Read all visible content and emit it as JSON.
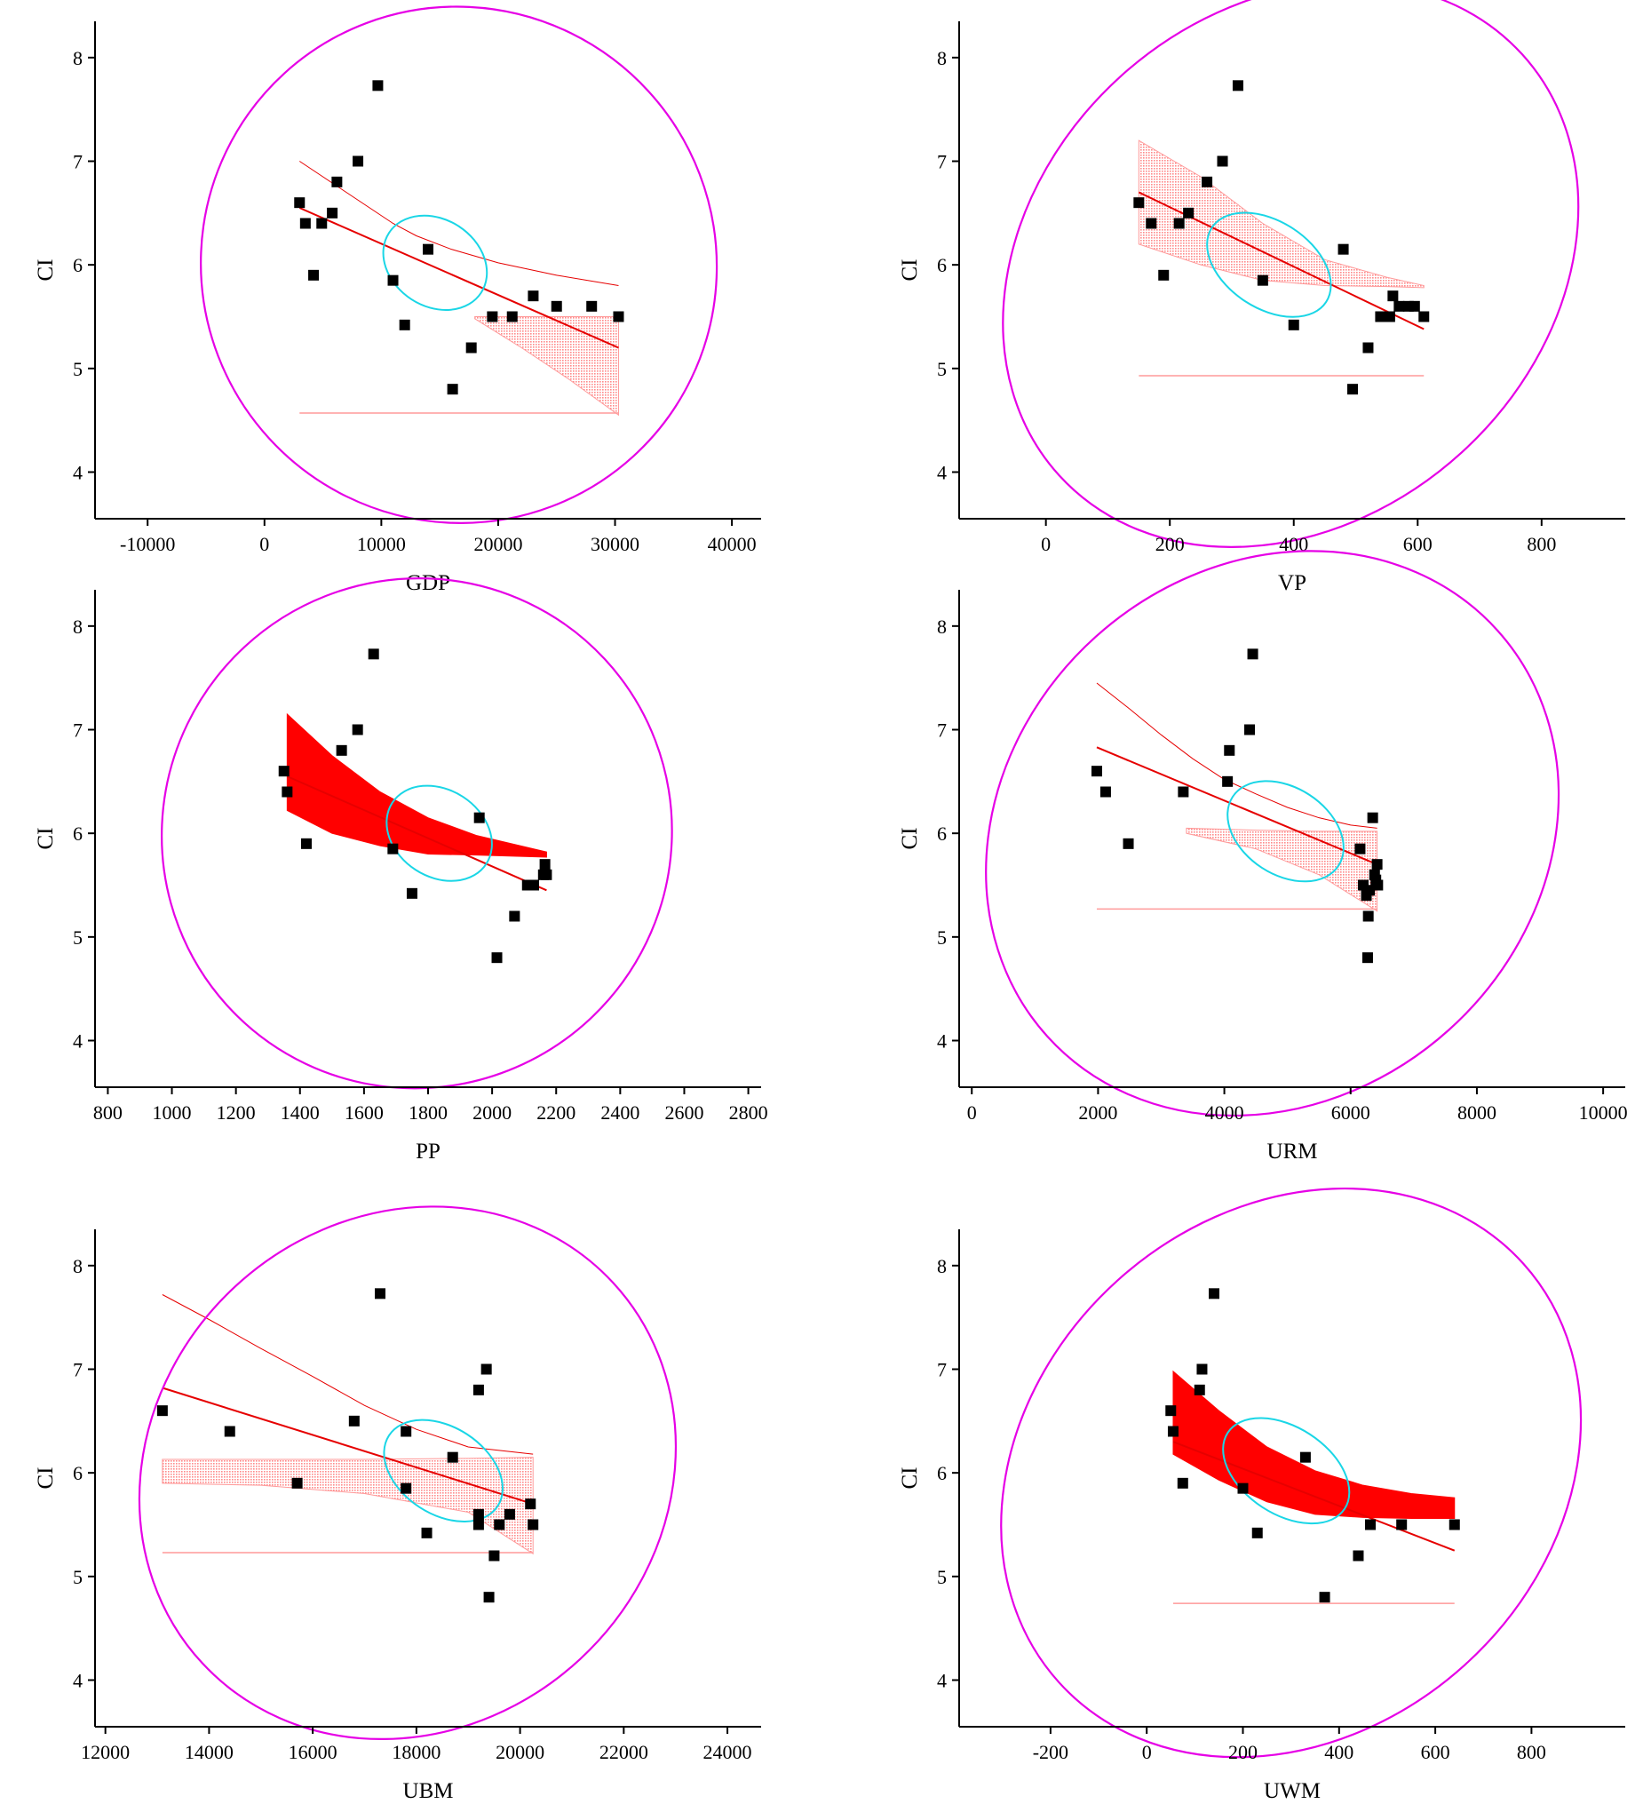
{
  "colors": {
    "points": "#000000",
    "fit_line": "#e60000",
    "band": "#ff0000",
    "band_light": "#ff9a9a",
    "outer_ellipse": "#e600e6",
    "inner_ellipse": "#1ad6e6",
    "axis": "#000000"
  },
  "chart_data": [
    {
      "type": "scatter",
      "xlabel": "GDP",
      "ylabel": "CI",
      "xlim": [
        -14500,
        42500
      ],
      "ylim": [
        3.55,
        8.35
      ],
      "xticks": [
        -10000,
        0,
        10000,
        20000,
        30000,
        40000
      ],
      "yticks": [
        4,
        5,
        6,
        7,
        8
      ],
      "points": [
        [
          3000,
          6.6
        ],
        [
          3500,
          6.4
        ],
        [
          4200,
          5.9
        ],
        [
          4900,
          6.4
        ],
        [
          5800,
          6.5
        ],
        [
          6200,
          6.8
        ],
        [
          8000,
          7.0
        ],
        [
          9700,
          7.73
        ],
        [
          11000,
          5.85
        ],
        [
          12000,
          5.42
        ],
        [
          14000,
          6.15
        ],
        [
          16100,
          4.8
        ],
        [
          17700,
          5.2
        ],
        [
          19500,
          5.5
        ],
        [
          21200,
          5.5
        ],
        [
          23000,
          5.7
        ],
        [
          25000,
          5.6
        ],
        [
          28000,
          5.6
        ],
        [
          30300,
          5.5
        ]
      ],
      "fit_line": [
        [
          3000,
          6.55
        ],
        [
          30300,
          5.2
        ]
      ],
      "band_style": "light",
      "band_upper": [
        [
          18000,
          5.5
        ],
        [
          22000,
          5.5
        ],
        [
          26000,
          5.5
        ],
        [
          30300,
          5.5
        ]
      ],
      "band_lower": [
        [
          18000,
          5.48
        ],
        [
          22000,
          5.2
        ],
        [
          26000,
          4.9
        ],
        [
          30300,
          4.55
        ]
      ],
      "upper_curve": [
        [
          3000,
          7.0
        ],
        [
          5000,
          6.85
        ],
        [
          7000,
          6.7
        ],
        [
          9000,
          6.55
        ],
        [
          11000,
          6.4
        ],
        [
          13000,
          6.28
        ],
        [
          16000,
          6.15
        ],
        [
          20000,
          6.02
        ],
        [
          25000,
          5.9
        ],
        [
          30300,
          5.8
        ]
      ],
      "lower_line": [
        [
          3000,
          4.57
        ],
        [
          30300,
          4.57
        ]
      ],
      "outer_ellipse": {
        "cx": 16630,
        "cy": 6.0,
        "rx": 22000,
        "ry": 2.5,
        "angle": -42.4
      },
      "inner_ellipse": {
        "cx": 14600,
        "cy": 6.02,
        "rx": 4700,
        "ry": 0.42,
        "angle": 33
      }
    },
    {
      "type": "scatter",
      "xlabel": "VP",
      "ylabel": "CI",
      "xlim": [
        -140,
        935
      ],
      "ylim": [
        3.55,
        8.35
      ],
      "xticks": [
        0,
        200,
        400,
        600,
        800
      ],
      "yticks": [
        4,
        5,
        6,
        7,
        8
      ],
      "points": [
        [
          150,
          6.6
        ],
        [
          170,
          6.4
        ],
        [
          190,
          5.9
        ],
        [
          215,
          6.4
        ],
        [
          230,
          6.5
        ],
        [
          260,
          6.8
        ],
        [
          285,
          7.0
        ],
        [
          310,
          7.73
        ],
        [
          350,
          5.85
        ],
        [
          400,
          5.42
        ],
        [
          480,
          6.15
        ],
        [
          495,
          4.8
        ],
        [
          520,
          5.2
        ],
        [
          540,
          5.5
        ],
        [
          555,
          5.5
        ],
        [
          560,
          5.7
        ],
        [
          570,
          5.6
        ],
        [
          585,
          5.6
        ],
        [
          595,
          5.6
        ],
        [
          610,
          5.5
        ]
      ],
      "fit_line": [
        [
          150,
          6.7
        ],
        [
          610,
          5.38
        ]
      ],
      "band_style": "light",
      "band_upper": [
        [
          150,
          7.2
        ],
        [
          250,
          6.85
        ],
        [
          350,
          6.4
        ],
        [
          450,
          6.05
        ],
        [
          550,
          5.88
        ],
        [
          610,
          5.8
        ]
      ],
      "band_lower": [
        [
          150,
          6.2
        ],
        [
          250,
          6.0
        ],
        [
          350,
          5.85
        ],
        [
          450,
          5.8
        ],
        [
          550,
          5.79
        ],
        [
          610,
          5.78
        ]
      ],
      "upper_curve": [],
      "lower_line": [
        [
          150,
          4.93
        ],
        [
          610,
          4.93
        ]
      ],
      "outer_ellipse": {
        "cx": 395,
        "cy": 6.0,
        "rx": 505,
        "ry": 2.45,
        "angle": -42.3
      },
      "inner_ellipse": {
        "cx": 360,
        "cy": 6.0,
        "rx": 110,
        "ry": 0.42,
        "angle": 33
      }
    },
    {
      "type": "scatter",
      "xlabel": "PP",
      "ylabel": "CI",
      "xlim": [
        760,
        2840
      ],
      "ylim": [
        3.55,
        8.35
      ],
      "xticks": [
        800,
        1000,
        1200,
        1400,
        1600,
        1800,
        2000,
        2200,
        2400,
        2600,
        2800
      ],
      "yticks": [
        4,
        5,
        6,
        7,
        8
      ],
      "points": [
        [
          1350,
          6.6
        ],
        [
          1360,
          6.4
        ],
        [
          1420,
          5.9
        ],
        [
          1530,
          6.8
        ],
        [
          1580,
          7.0
        ],
        [
          1630,
          7.73
        ],
        [
          1690,
          5.85
        ],
        [
          1750,
          5.42
        ],
        [
          1960,
          6.15
        ],
        [
          2015,
          4.8
        ],
        [
          2070,
          5.2
        ],
        [
          2110,
          5.5
        ],
        [
          2130,
          5.5
        ],
        [
          2160,
          5.6
        ],
        [
          2165,
          5.7
        ],
        [
          2170,
          5.6
        ]
      ],
      "fit_line": [
        [
          1360,
          6.55
        ],
        [
          2170,
          5.45
        ]
      ],
      "band_style": "solid",
      "band_upper": [
        [
          1360,
          7.15
        ],
        [
          1500,
          6.75
        ],
        [
          1650,
          6.4
        ],
        [
          1800,
          6.15
        ],
        [
          1950,
          5.98
        ],
        [
          2170,
          5.82
        ]
      ],
      "band_lower": [
        [
          1360,
          6.22
        ],
        [
          1500,
          6.0
        ],
        [
          1650,
          5.88
        ],
        [
          1800,
          5.8
        ],
        [
          1950,
          5.79
        ],
        [
          2170,
          5.77
        ]
      ],
      "upper_curve": [],
      "lower_line": [],
      "outer_ellipse": {
        "cx": 1765,
        "cy": 6.0,
        "rx": 800,
        "ry": 2.45,
        "angle": -42.8
      },
      "inner_ellipse": {
        "cx": 1835,
        "cy": 6.0,
        "rx": 175,
        "ry": 0.42,
        "angle": 33
      }
    },
    {
      "type": "scatter",
      "xlabel": "URM",
      "ylabel": "CI",
      "xlim": [
        -200,
        10350
      ],
      "ylim": [
        3.55,
        8.35
      ],
      "xticks": [
        0,
        2000,
        4000,
        6000,
        8000,
        10000
      ],
      "yticks": [
        4,
        5,
        6,
        7,
        8
      ],
      "points": [
        [
          1980,
          6.6
        ],
        [
          2120,
          6.4
        ],
        [
          2480,
          5.9
        ],
        [
          3350,
          6.4
        ],
        [
          4050,
          6.5
        ],
        [
          4080,
          6.8
        ],
        [
          4400,
          7.0
        ],
        [
          4450,
          7.73
        ],
        [
          6150,
          5.85
        ],
        [
          6200,
          5.5
        ],
        [
          6250,
          5.4
        ],
        [
          6280,
          5.2
        ],
        [
          6300,
          5.45
        ],
        [
          6350,
          6.15
        ],
        [
          6380,
          5.6
        ],
        [
          6400,
          5.55
        ],
        [
          6420,
          5.7
        ],
        [
          6430,
          5.5
        ],
        [
          6270,
          4.8
        ]
      ],
      "fit_line": [
        [
          1980,
          6.83
        ],
        [
          6420,
          5.7
        ]
      ],
      "band_style": "light",
      "band_upper": [
        [
          3400,
          6.05
        ],
        [
          4500,
          6.03
        ],
        [
          5500,
          6.02
        ],
        [
          6420,
          6.02
        ]
      ],
      "band_lower": [
        [
          3400,
          6.0
        ],
        [
          4500,
          5.85
        ],
        [
          5500,
          5.6
        ],
        [
          6420,
          5.25
        ]
      ],
      "upper_curve": [
        [
          1980,
          7.45
        ],
        [
          2500,
          7.2
        ],
        [
          3000,
          6.95
        ],
        [
          3500,
          6.72
        ],
        [
          4000,
          6.52
        ],
        [
          4500,
          6.38
        ],
        [
          5000,
          6.25
        ],
        [
          5500,
          6.15
        ],
        [
          6000,
          6.08
        ],
        [
          6420,
          6.05
        ]
      ],
      "lower_line": [
        [
          1980,
          5.27
        ],
        [
          6420,
          5.27
        ]
      ],
      "outer_ellipse": {
        "cx": 4760,
        "cy": 6.0,
        "rx": 4800,
        "ry": 2.55,
        "angle": -42
      },
      "inner_ellipse": {
        "cx": 4970,
        "cy": 6.02,
        "rx": 1000,
        "ry": 0.42,
        "angle": 33
      }
    },
    {
      "type": "scatter",
      "xlabel": "UBM",
      "ylabel": "CI",
      "xlim": [
        11800,
        24650
      ],
      "ylim": [
        3.55,
        8.35
      ],
      "xticks": [
        12000,
        14000,
        16000,
        18000,
        20000,
        22000,
        24000
      ],
      "yticks": [
        4,
        5,
        6,
        7,
        8
      ],
      "points": [
        [
          13100,
          6.6
        ],
        [
          14400,
          6.4
        ],
        [
          15700,
          5.9
        ],
        [
          16800,
          6.5
        ],
        [
          17300,
          7.73
        ],
        [
          17800,
          6.4
        ],
        [
          17800,
          5.85
        ],
        [
          18200,
          5.42
        ],
        [
          18700,
          6.15
        ],
        [
          19200,
          6.8
        ],
        [
          19200,
          5.5
        ],
        [
          19350,
          7.0
        ],
        [
          19200,
          5.6
        ],
        [
          19400,
          4.8
        ],
        [
          19500,
          5.2
        ],
        [
          19600,
          5.5
        ],
        [
          19800,
          5.6
        ],
        [
          20200,
          5.7
        ],
        [
          20250,
          5.5
        ]
      ],
      "fit_line": [
        [
          13100,
          6.82
        ],
        [
          20250,
          5.7
        ]
      ],
      "band_style": "light",
      "band_upper": [
        [
          13100,
          6.13
        ],
        [
          15000,
          6.13
        ],
        [
          17000,
          6.13
        ],
        [
          19000,
          6.14
        ],
        [
          20250,
          6.15
        ]
      ],
      "band_lower": [
        [
          13100,
          5.9
        ],
        [
          15000,
          5.88
        ],
        [
          17000,
          5.8
        ],
        [
          19000,
          5.62
        ],
        [
          20250,
          5.22
        ]
      ],
      "upper_curve": [
        [
          13100,
          7.72
        ],
        [
          14000,
          7.48
        ],
        [
          15000,
          7.2
        ],
        [
          16000,
          6.93
        ],
        [
          17000,
          6.65
        ],
        [
          18000,
          6.42
        ],
        [
          19000,
          6.25
        ],
        [
          20250,
          6.18
        ]
      ],
      "lower_line": [
        [
          13100,
          5.23
        ],
        [
          20250,
          5.23
        ]
      ],
      "outer_ellipse": {
        "cx": 17830,
        "cy": 6.0,
        "rx": 5400,
        "ry": 2.45,
        "angle": -42.8
      },
      "inner_ellipse": {
        "cx": 18520,
        "cy": 6.02,
        "rx": 1250,
        "ry": 0.42,
        "angle": 33
      }
    },
    {
      "type": "scatter",
      "xlabel": "UWM",
      "ylabel": "CI",
      "xlim": [
        -390,
        995
      ],
      "ylim": [
        3.55,
        8.35
      ],
      "xticks": [
        -200,
        0,
        200,
        400,
        600,
        800
      ],
      "yticks": [
        4,
        5,
        6,
        7,
        8
      ],
      "points": [
        [
          50,
          6.6
        ],
        [
          55,
          6.4
        ],
        [
          75,
          5.9
        ],
        [
          110,
          6.8
        ],
        [
          115,
          7.0
        ],
        [
          140,
          7.73
        ],
        [
          200,
          5.85
        ],
        [
          230,
          5.42
        ],
        [
          330,
          6.15
        ],
        [
          370,
          4.8
        ],
        [
          440,
          5.2
        ],
        [
          465,
          5.5
        ],
        [
          530,
          5.5
        ],
        [
          640,
          5.5
        ]
      ],
      "fit_line": [
        [
          55,
          6.3
        ],
        [
          640,
          5.25
        ]
      ],
      "band_style": "solid",
      "band_upper": [
        [
          55,
          6.98
        ],
        [
          150,
          6.6
        ],
        [
          250,
          6.25
        ],
        [
          350,
          6.02
        ],
        [
          450,
          5.88
        ],
        [
          550,
          5.8
        ],
        [
          640,
          5.76
        ]
      ],
      "band_lower": [
        [
          55,
          6.18
        ],
        [
          150,
          5.93
        ],
        [
          250,
          5.72
        ],
        [
          350,
          5.6
        ],
        [
          450,
          5.57
        ],
        [
          550,
          5.56
        ],
        [
          640,
          5.56
        ]
      ],
      "upper_curve": [],
      "lower_line": [
        [
          55,
          4.74
        ],
        [
          640,
          4.74
        ]
      ],
      "outer_ellipse": {
        "cx": 300,
        "cy": 6.0,
        "rx": 650,
        "ry": 2.5,
        "angle": -42
      },
      "inner_ellipse": {
        "cx": 290,
        "cy": 6.02,
        "rx": 145,
        "ry": 0.42,
        "angle": 33
      }
    }
  ]
}
